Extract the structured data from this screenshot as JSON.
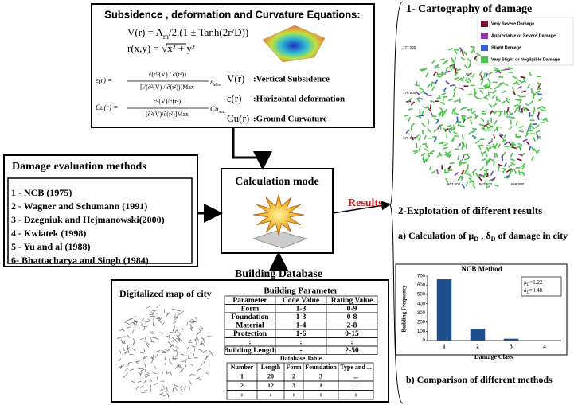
{
  "equations": {
    "title": "Subsidence , deformation and Curvature Equations:",
    "eq1": [
      "V(r) = A",
      "m",
      "/2.(1 ± Tanh(2r/D))"
    ],
    "eq2": "r(x,y) = √x² + y²",
    "eq3": {
      "lhs": "ε(r) =",
      "num": "√(∂²(V) / ∂(r²))",
      "den": "[√(∂²(V) / ∂(r²))]Max",
      "factor": "ε",
      "factor_sub": "Max"
    },
    "eq4": {
      "lhs": "Cu(r) =",
      "num": "∂²(V)/∂(r²)",
      "den": "[∂²(V)/∂(r²)]Max",
      "factor": "Cu",
      "factor_sub": "max"
    },
    "definitions": [
      {
        "symbol": "V(r)",
        "text": ":Vertical Subsidence"
      },
      {
        "symbol": "ε(r)",
        "text": ":Horizontal deformation"
      },
      {
        "symbol": "Cu(r)",
        "text": ":Ground Curvature"
      }
    ]
  },
  "methods": {
    "title": "Damage evaluation methods",
    "items": [
      "1 - NCB (1975)",
      "2 - Wagner and Schumann (1991)",
      "3 - Dzegniuk and Hejmanowski(2000)",
      "4 - Kwiatek (1998)",
      "5 - Yu and al (1988)",
      "6- Bhattacharya and Singh (1984)"
    ]
  },
  "calculation": {
    "title": "Calculation mode",
    "results": "Results",
    "database": "Building Database"
  },
  "bottom": {
    "map_title": "Digitalized map of city",
    "building_parameter": {
      "title": "Building Parameter",
      "header": [
        "Parameter",
        "Code Value",
        "Rating Value"
      ],
      "rows": [
        [
          "Form",
          "1-3",
          "0-9"
        ],
        [
          "Foundation",
          "1-3",
          "0-8"
        ],
        [
          "Material",
          "1-4",
          "2-8"
        ],
        [
          "Protection",
          "1-6",
          "0-15"
        ],
        [
          ":",
          ":",
          ":"
        ],
        [
          "Building Length",
          "-",
          "2-50"
        ]
      ]
    },
    "database_table": {
      "title": "Database Table",
      "header": [
        "Number",
        "Length",
        "Form",
        "Foundation",
        "Type and ..."
      ],
      "rows": [
        [
          "1",
          "20",
          "2",
          "3",
          "..."
        ],
        [
          "2",
          "12",
          "3",
          "1",
          "..."
        ],
        [
          ":",
          ":",
          ":",
          ":",
          ":"
        ]
      ]
    }
  },
  "cartography": {
    "title": "1- Cartography of damage",
    "legend": [
      {
        "name": "Very Severe Damage",
        "color": "#7a1030"
      },
      {
        "name": "Appreciable or Severe  Damage",
        "color": "#8a3aa8"
      },
      {
        "name": "Slight Damage",
        "color": "#3a5fd0"
      },
      {
        "name": "Very Slight or Negligible Damage",
        "color": "#4cc44c"
      }
    ],
    "y_labels": [
      "177 000",
      "176 500",
      "176 000"
    ],
    "x_labels": [
      "667 000",
      "667 500",
      "668 000"
    ]
  },
  "exploitation": {
    "title": "2-Explotation of different results",
    "a": [
      "a) Calculation of μ",
      "D",
      " , δ",
      "D",
      " of damage in city"
    ],
    "b": "b) Comparison of different methods"
  },
  "chart_data": {
    "type": "bar",
    "title": "NCB Method",
    "categories": [
      "1",
      "2",
      "3",
      "4"
    ],
    "values": [
      665,
      130,
      20,
      0
    ],
    "color": "#1f4e8c",
    "ylim": [
      0,
      700
    ],
    "yticks": [
      0,
      100,
      200,
      300,
      400,
      500,
      600,
      700
    ],
    "x_label": "Damage Class",
    "y_label": "Building Frequency",
    "stats": [
      [
        "μ",
        "D",
        "=1.22"
      ],
      [
        "δ",
        "D",
        "=0.48"
      ]
    ]
  }
}
